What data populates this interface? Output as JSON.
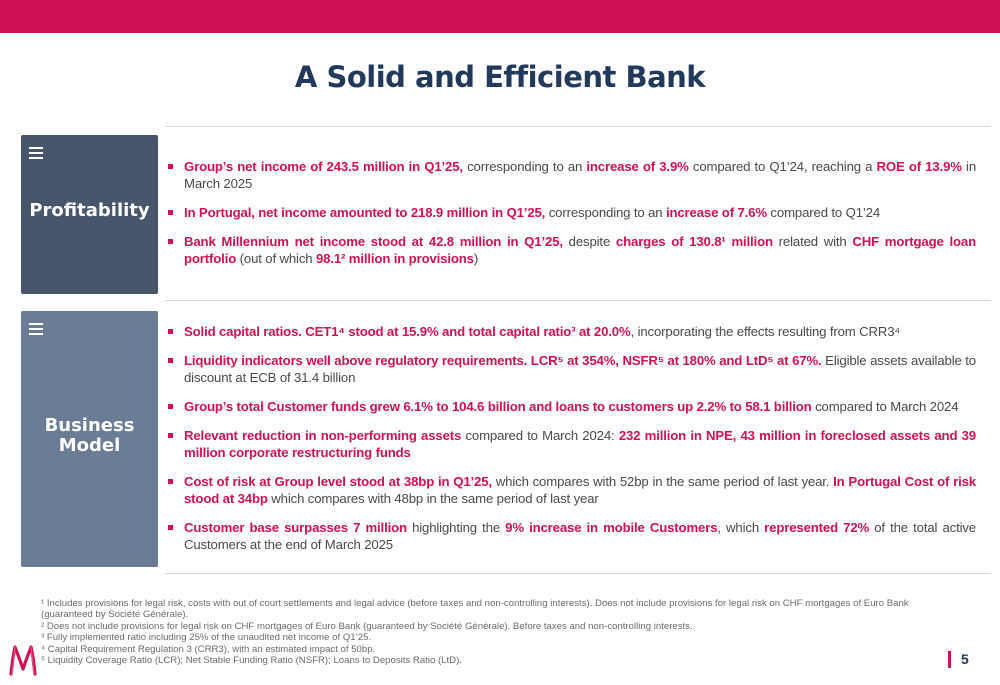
{
  "title": "A Solid and Efficient Bank",
  "page_number": "5",
  "sections": {
    "profitability": {
      "label": "Profitability",
      "bullets": [
        [
          {
            "t": "Group’s net income of 243.5 million in Q1’25,",
            "b": true
          },
          {
            "t": " corresponding to an ",
            "b": false
          },
          {
            "t": "increase of 3.9%",
            "b": true
          },
          {
            "t": " compared to Q1’24, reaching a ",
            "b": false
          },
          {
            "t": "ROE of 13.9%",
            "b": true
          },
          {
            "t": " in March 2025",
            "b": false
          }
        ],
        [
          {
            "t": "In Portugal, net income amounted to 218.9 million in Q1’25,",
            "b": true
          },
          {
            "t": " corresponding to an ",
            "b": false
          },
          {
            "t": "increase of 7.6%",
            "b": true
          },
          {
            "t": " compared to Q1’24",
            "b": false
          }
        ],
        [
          {
            "t": "Bank Millennium net income stood at 42.8 million in Q1’25,",
            "b": true
          },
          {
            "t": " despite ",
            "b": false
          },
          {
            "t": "charges of 130.8¹ million",
            "b": true
          },
          {
            "t": " related with ",
            "b": false
          },
          {
            "t": "CHF mortgage loan portfolio",
            "b": true
          },
          {
            "t": " (out of which ",
            "b": false
          },
          {
            "t": "98.1² million in provisions",
            "b": true
          },
          {
            "t": ")",
            "b": false
          }
        ]
      ]
    },
    "business_model": {
      "label_line1": "Business",
      "label_line2": "Model",
      "bullets": [
        [
          {
            "t": "Solid capital ratios. CET1⁴ stood at 15.9% and total capital ratio³ at 20.0%",
            "b": true
          },
          {
            "t": ", incorporating the effects resulting from CRR3⁴",
            "b": false
          }
        ],
        [
          {
            "t": "Liquidity indicators well above regulatory requirements. LCR⁵ at 354%, NSFR⁵ at 180% and LtD⁵ at 67%.",
            "b": true
          },
          {
            "t": " Eligible assets available to discount at ECB of 31.4 billion",
            "b": false
          }
        ],
        [
          {
            "t": "Group’s total Customer funds grew 6.1% to 104.6 billion and loans to customers up 2.2% to 58.1 billion",
            "b": true
          },
          {
            "t": " compared to March 2024",
            "b": false
          }
        ],
        [
          {
            "t": "Relevant reduction in non-performing assets",
            "b": true
          },
          {
            "t": " compared to March 2024: ",
            "b": false
          },
          {
            "t": "232 million in NPE, 43 million in foreclosed assets and 39 million corporate restructuring funds",
            "b": true
          }
        ],
        [
          {
            "t": "Cost of risk at Group level stood at 38bp in Q1’25,",
            "b": true
          },
          {
            "t": " which compares with 52bp in the same period of last year. ",
            "b": false
          },
          {
            "t": "In Portugal Cost of risk stood at 34bp",
            "b": true
          },
          {
            "t": " which compares with 48bp in the same period of last year",
            "b": false
          }
        ],
        [
          {
            "t": "Customer base surpasses 7 million",
            "b": true
          },
          {
            "t": " highlighting the ",
            "b": false
          },
          {
            "t": "9% increase in mobile Customers",
            "b": true
          },
          {
            "t": ", which ",
            "b": false
          },
          {
            "t": "represented 72%",
            "b": true
          },
          {
            "t": " of the total active Customers at the end of March 2025",
            "b": false
          }
        ]
      ]
    }
  },
  "footnotes": [
    "¹ Includes provisions for legal risk, costs with out of court settlements and legal advice (before taxes and non-controlling interests). Does not include provisions for legal risk on CHF mortgages of Euro Bank (guaranteed by Société Générale).",
    "² Does not include provisions for legal risk on CHF mortgages of Euro Bank (guaranteed by Société Générale). Before taxes and non-controlling interests.",
    "³ Fully implemented ratio including 25% of the unaudited net income of Q1’25.",
    "⁴ Capital Requirement Regulation 3 (CRR3), with an estimated impact of 50bp.",
    "⁵ Liquidity Coverage Ratio (LCR); Net Stable Funding Ratio (NSFR); Loans to Deposits Ratio (LtD)."
  ],
  "colors": {
    "accent": "#cf1156",
    "title": "#213a5c",
    "profitability_box": "#47566a",
    "business_box": "#6a7c93"
  },
  "icons": {
    "section_icon": "menu-icon",
    "logo": "millennium-logo"
  }
}
